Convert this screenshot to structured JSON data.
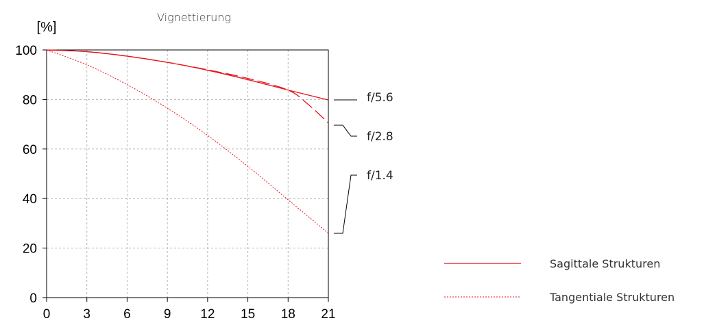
{
  "chart_data": {
    "type": "line",
    "title": "Vignettierung",
    "ylabel": "[%]",
    "xlabel": "",
    "xlim": [
      0,
      21
    ],
    "ylim": [
      0,
      100
    ],
    "x_ticks": [
      0,
      3,
      6,
      9,
      12,
      15,
      18,
      21
    ],
    "y_ticks": [
      0,
      20,
      40,
      60,
      80,
      100
    ],
    "grid": true,
    "line_color": "#e8141c",
    "series": [
      {
        "name": "f/5.6",
        "x": [
          0,
          3,
          6,
          9,
          12,
          15,
          18,
          21
        ],
        "y": [
          100,
          99.3,
          97.5,
          95.0,
          91.8,
          88.0,
          83.8,
          79.8
        ]
      },
      {
        "name": "f/2.8",
        "x": [
          0,
          3,
          6,
          9,
          12,
          15,
          18,
          19.5,
          21
        ],
        "y": [
          100,
          99.3,
          97.5,
          95.0,
          92.0,
          88.5,
          83.8,
          78.0,
          70.5
        ]
      },
      {
        "name": "f/1.4",
        "x": [
          0,
          3,
          6,
          9,
          12,
          15,
          18,
          21
        ],
        "y": [
          100,
          94.0,
          86.0,
          76.5,
          65.5,
          53.0,
          39.5,
          26.0
        ]
      }
    ],
    "legend": [
      {
        "label": "Sagittale Strukturen",
        "style": "solid"
      },
      {
        "label": "Tangentiale Strukturen",
        "style": "dotted"
      }
    ]
  }
}
